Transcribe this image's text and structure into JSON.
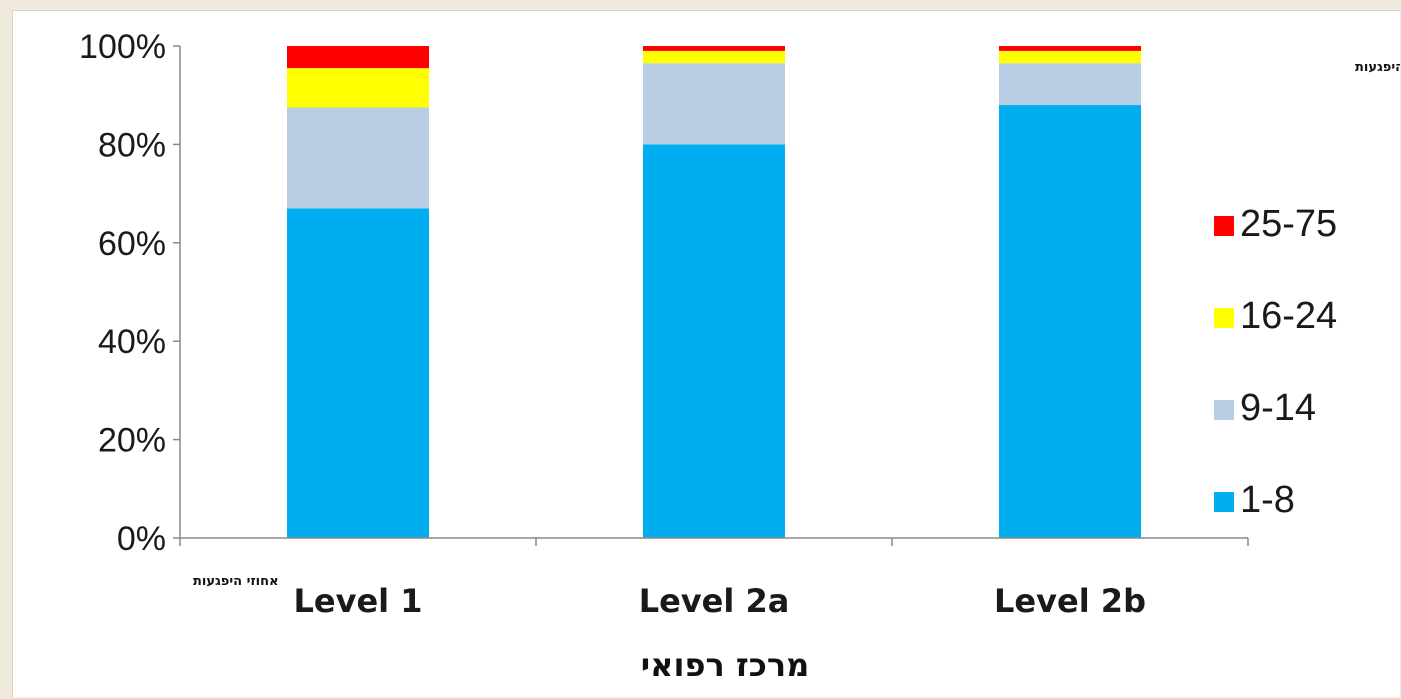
{
  "chart_data": {
    "type": "bar",
    "stacked": true,
    "categories": [
      "Level 1",
      "Level 2a",
      "Level 2b"
    ],
    "series": [
      {
        "name": "1-8",
        "color": "#00aeef",
        "values": [
          67,
          80,
          88
        ]
      },
      {
        "name": "9-14",
        "color": "#b8cce4",
        "values": [
          20.5,
          16.5,
          8.5
        ]
      },
      {
        "name": "16-24",
        "color": "#ffff00",
        "values": [
          8,
          2.5,
          2.5
        ]
      },
      {
        "name": "25-75",
        "color": "#ff0000",
        "values": [
          4.5,
          1,
          1
        ]
      }
    ],
    "ylim": [
      0,
      100
    ],
    "yticks": [
      "0%",
      "20%",
      "40%",
      "60%",
      "80%",
      "100%"
    ],
    "ylabel": "אחוזי היפגעות",
    "xlabel": "מרכז רפואי",
    "legend_title": "דרגת ההיפגעות",
    "legend_position": "right",
    "grid": false
  }
}
